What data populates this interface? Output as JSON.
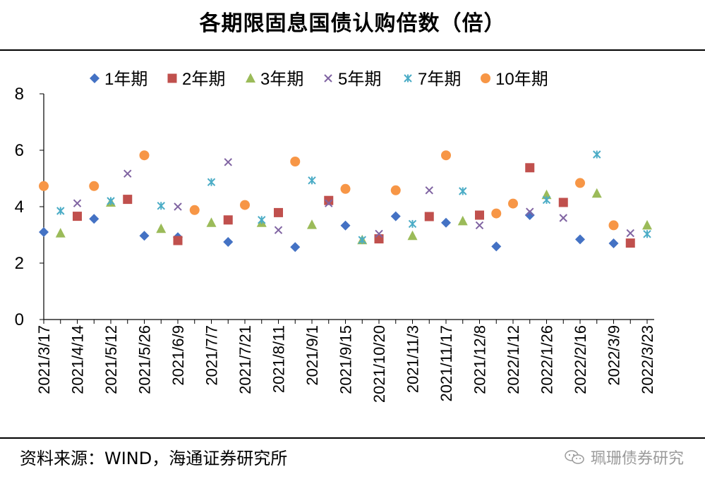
{
  "chart_data": {
    "type": "scatter",
    "title": "各期限固息国债认购倍数（倍）",
    "xlabel": "",
    "ylabel": "",
    "ylim": [
      0,
      8
    ],
    "yticks": [
      "0",
      "2",
      "4",
      "6",
      "8"
    ],
    "legend_position": "top",
    "categories": [
      "2021/3/17",
      "2021/4/14",
      "2021/5/12",
      "2021/5/26",
      "2021/6/9",
      "2021/7/7",
      "2021/7/21",
      "2021/8/11",
      "2021/9/1",
      "2021/9/15",
      "2021/10/20",
      "2021/11/3",
      "2021/11/17",
      "2021/12/8",
      "2022/1/12",
      "2022/1/26",
      "2022/2/16",
      "2022/3/9",
      "2022/3/23"
    ],
    "series": [
      {
        "name": "1年期",
        "marker": "diamond",
        "color": "#4472C4",
        "points": [
          [
            0,
            3.1
          ],
          [
            3,
            3.57
          ],
          [
            6,
            2.97
          ],
          [
            8,
            2.92
          ],
          [
            11,
            2.75
          ],
          [
            15,
            2.57
          ],
          [
            18,
            3.33
          ],
          [
            21,
            3.66
          ],
          [
            24,
            3.43
          ],
          [
            27,
            2.59
          ],
          [
            29,
            3.7
          ],
          [
            32,
            2.84
          ],
          [
            34,
            2.7
          ]
        ]
      },
      {
        "name": "2年期",
        "marker": "square",
        "color": "#C0504D",
        "points": [
          [
            2,
            3.66
          ],
          [
            5,
            4.26
          ],
          [
            8,
            2.8
          ],
          [
            11,
            3.53
          ],
          [
            14,
            3.79
          ],
          [
            17,
            4.22
          ],
          [
            20,
            2.86
          ],
          [
            23,
            3.65
          ],
          [
            26,
            3.7
          ],
          [
            29,
            5.38
          ],
          [
            31,
            4.15
          ],
          [
            35,
            2.71
          ]
        ]
      },
      {
        "name": "3年期",
        "marker": "triangle",
        "color": "#9BBB59",
        "points": [
          [
            1,
            3.06
          ],
          [
            4,
            4.15
          ],
          [
            7,
            3.22
          ],
          [
            10,
            3.43
          ],
          [
            13,
            3.43
          ],
          [
            16,
            3.36
          ],
          [
            19,
            2.82
          ],
          [
            22,
            2.97
          ],
          [
            25,
            3.49
          ],
          [
            30,
            4.42
          ],
          [
            33,
            4.47
          ],
          [
            36,
            3.34
          ]
        ]
      },
      {
        "name": "5年期",
        "marker": "x",
        "color": "#8064A2",
        "points": [
          [
            2,
            4.12
          ],
          [
            5,
            5.17
          ],
          [
            8,
            4.0
          ],
          [
            11,
            5.58
          ],
          [
            14,
            3.17
          ],
          [
            17,
            4.12
          ],
          [
            20,
            3.04
          ],
          [
            23,
            4.58
          ],
          [
            26,
            3.34
          ],
          [
            29,
            3.82
          ],
          [
            31,
            3.6
          ],
          [
            35,
            3.06
          ]
        ]
      },
      {
        "name": "7年期",
        "marker": "star",
        "color": "#4BACC6",
        "points": [
          [
            1,
            3.85
          ],
          [
            4,
            4.2
          ],
          [
            7,
            4.03
          ],
          [
            10,
            4.87
          ],
          [
            13,
            3.53
          ],
          [
            16,
            4.93
          ],
          [
            19,
            2.82
          ],
          [
            22,
            3.39
          ],
          [
            25,
            4.55
          ],
          [
            30,
            4.24
          ],
          [
            33,
            5.85
          ],
          [
            36,
            3.03
          ]
        ]
      },
      {
        "name": "10年期",
        "marker": "circle",
        "color": "#F79646",
        "points": [
          [
            0,
            4.73
          ],
          [
            3,
            4.73
          ],
          [
            6,
            5.82
          ],
          [
            9,
            3.88
          ],
          [
            12,
            4.06
          ],
          [
            15,
            5.6
          ],
          [
            18,
            4.63
          ],
          [
            21,
            4.58
          ],
          [
            24,
            5.82
          ],
          [
            27,
            3.76
          ],
          [
            28,
            4.11
          ],
          [
            32,
            4.84
          ],
          [
            34,
            3.34
          ]
        ]
      }
    ]
  },
  "footer": {
    "source": "资料来源：WIND，海通证券研究所",
    "watermark": "珮珊债券研究"
  }
}
